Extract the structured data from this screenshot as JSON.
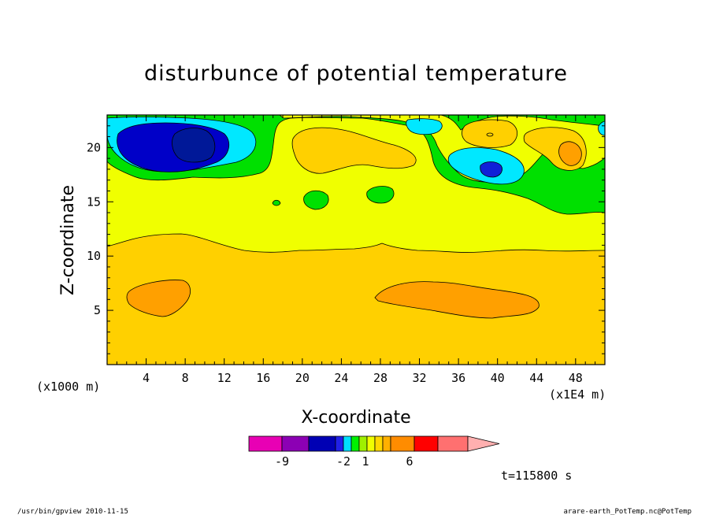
{
  "chart_data": {
    "type": "contour",
    "title": "disturbunce of potential temperature",
    "xlabel": "X-coordinate",
    "ylabel": "Z-coordinate",
    "x_unit_label": "(x1E4 m)",
    "y_unit_label": "(x1000 m)",
    "xlim": [
      0,
      51
    ],
    "ylim": [
      0,
      23
    ],
    "x_ticks": [
      "4",
      "8",
      "12",
      "16",
      "20",
      "24",
      "28",
      "32",
      "36",
      "40",
      "44",
      "48"
    ],
    "x_tick_values": [
      4,
      8,
      12,
      16,
      20,
      24,
      28,
      32,
      36,
      40,
      44,
      48
    ],
    "y_ticks": [
      "5",
      "10",
      "15",
      "20"
    ],
    "y_tick_values": [
      5,
      10,
      15,
      20
    ],
    "time_label": "t=115800 s",
    "colorbar": {
      "labels": [
        "-9",
        "-2",
        "1",
        "6"
      ],
      "colors": [
        "#e800b4",
        "#8c00b4",
        "#0000b4",
        "#2020e8",
        "#00e0ff",
        "#00f000",
        "#a0f000",
        "#f0ff00",
        "#ffd800",
        "#ffb000",
        "#ff8c00",
        "#ff0000",
        "#ff7070",
        "#ffb0b0"
      ]
    }
  },
  "footer": {
    "left": "/usr/bin/gpview   2010-11-15",
    "right": "arare-earth_PotTemp.nc@PotTemp"
  }
}
